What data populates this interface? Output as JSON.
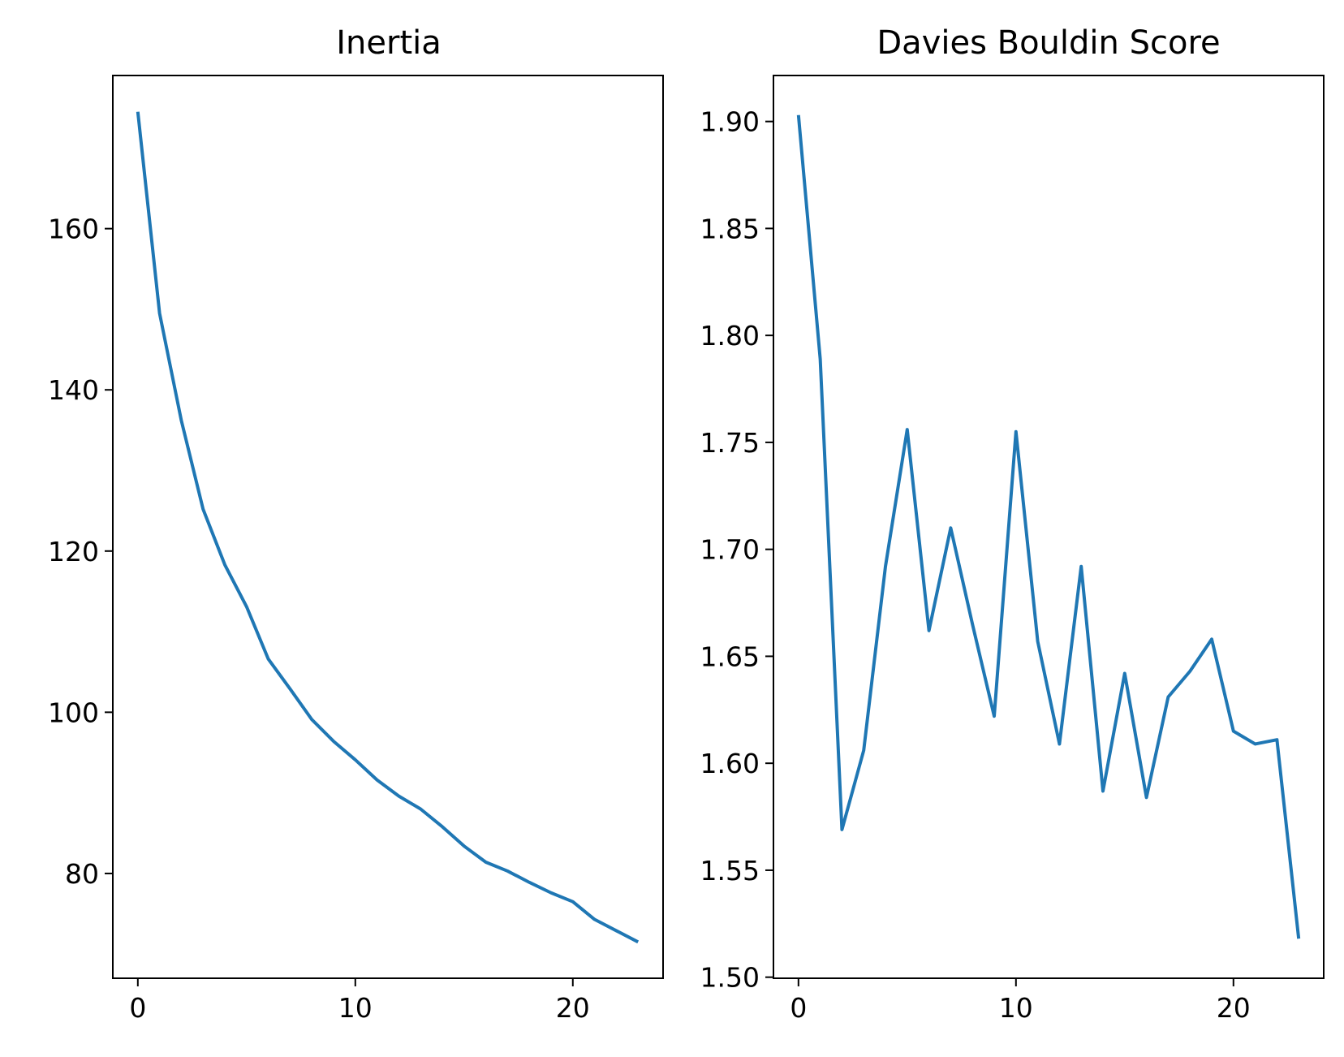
{
  "chart_data": [
    {
      "type": "line",
      "title": "Inertia",
      "xlabel": "",
      "ylabel": "",
      "xlim": [
        -1.15,
        24.15
      ],
      "ylim": [
        67,
        179
      ],
      "xticks": [
        0,
        10,
        20
      ],
      "yticks": [
        80,
        100,
        120,
        140,
        160
      ],
      "x_tick_labels": [
        "0",
        "10",
        "20"
      ],
      "y_tick_labels": [
        "80",
        "100",
        "120",
        "140",
        "160"
      ],
      "grid": false,
      "color": "#1f77b4",
      "series": [
        {
          "x": [
            0,
            1,
            2,
            3,
            4,
            5,
            6,
            7,
            8,
            9,
            10,
            11,
            12,
            13,
            14,
            15,
            16,
            17,
            18,
            19,
            20,
            21,
            22,
            23
          ],
          "values": [
            174.5,
            149.5,
            136.2,
            125.2,
            118.3,
            113.1,
            106.6,
            102.9,
            99.1,
            96.4,
            94.1,
            91.6,
            89.6,
            88.0,
            85.8,
            83.4,
            81.4,
            80.3,
            78.9,
            77.6,
            76.5,
            74.3,
            72.9,
            71.5
          ]
        }
      ]
    },
    {
      "type": "line",
      "title": "Davies Bouldin Score",
      "xlabel": "",
      "ylabel": "",
      "xlim": [
        -1.15,
        24.15
      ],
      "ylim": [
        1.4995,
        1.9215
      ],
      "xticks": [
        0,
        10,
        20
      ],
      "yticks": [
        1.5,
        1.55,
        1.6,
        1.65,
        1.7,
        1.75,
        1.8,
        1.85,
        1.9
      ],
      "x_tick_labels": [
        "0",
        "10",
        "20"
      ],
      "y_tick_labels": [
        "1.50",
        "1.55",
        "1.60",
        "1.65",
        "1.70",
        "1.75",
        "1.80",
        "1.85",
        "1.90"
      ],
      "grid": false,
      "color": "#1f77b4",
      "series": [
        {
          "x": [
            0,
            1,
            2,
            3,
            4,
            5,
            6,
            7,
            8,
            9,
            10,
            11,
            12,
            13,
            14,
            15,
            16,
            17,
            18,
            19,
            20,
            21,
            22,
            23
          ],
          "values": [
            1.903,
            1.789,
            1.569,
            1.606,
            1.692,
            1.756,
            1.662,
            1.71,
            1.665,
            1.622,
            1.755,
            1.657,
            1.609,
            1.692,
            1.587,
            1.642,
            1.584,
            1.631,
            1.643,
            1.658,
            1.615,
            1.609,
            1.611,
            1.518
          ]
        }
      ]
    }
  ]
}
